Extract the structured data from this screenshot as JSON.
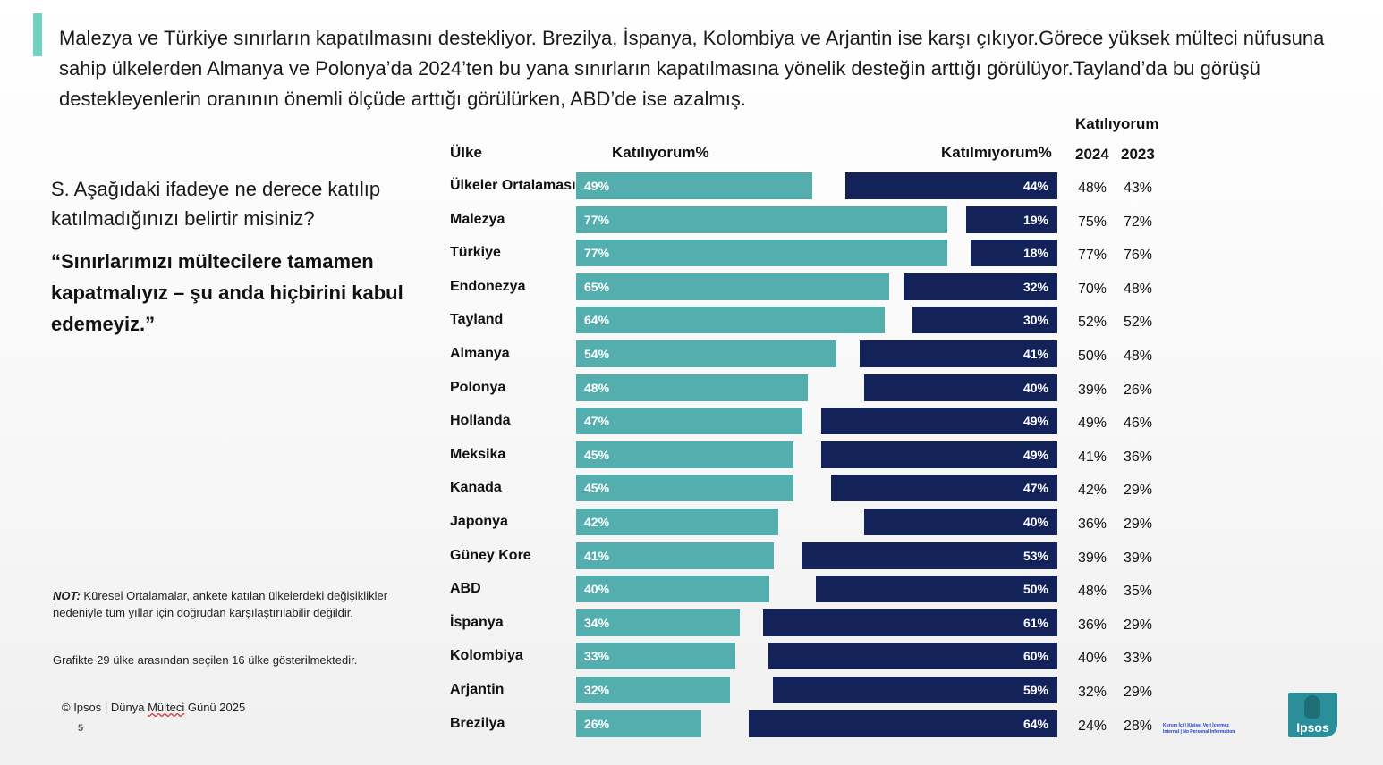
{
  "colors": {
    "accent": "#6fd3c0",
    "agree": "#54aead",
    "disagree": "#13235a"
  },
  "headline": "Malezya ve Türkiye sınırların kapatılmasını destekliyor. Brezilya, İspanya, Kolombiya ve Arjantin ise karşı çıkıyor.Görece yüksek mülteci nüfusuna sahip ülkelerden Almanya ve Polonya’da 2024’ten bu yana sınırların kapatılmasına yönelik desteğin arttığı görülüyor.Tayland’da bu görüşü destekleyenlerin oranının önemli ölçüde arttığı görülürken, ABD’de ise azalmış.",
  "question": "S. Aşağıdaki ifadeye ne derece katılıp katılmadığınızı belirtir misiniz?",
  "statement": "“Sınırlarımızı mültecilere tamamen kapatmalıyız – şu anda hiçbirini kabul edemeyiz.”",
  "note": {
    "label": "NOT:",
    "text": " Küresel Ortalamalar, ankete katılan ülkelerdeki değişiklikler nedeniyle tüm yıllar için doğrudan karşılaştırılabilir değildir.",
    "text2": "Grafikte 29 ülke arasından seçilen 16 ülke gösterilmektedir."
  },
  "footer": {
    "copyright_prefix": "© Ipsos | Dünya ",
    "copyright_underlined": "Mülteci",
    "copyright_suffix": " Günü 2025",
    "page_number": "5",
    "logo_text": "Ipsos",
    "classification_line1": "Kurum İçi | Kişisel Veri İçermez",
    "classification_line2": "Internal | No Personal Information"
  },
  "chart_data": {
    "type": "bar",
    "headers": {
      "country": "Ülke",
      "agree": "Katılıyorum%",
      "disagree": "Katılmıyorum%",
      "trend_title": "Katılıyorum",
      "year1": "2024",
      "year2": "2023"
    },
    "categories": [
      "Ülkeler Ortalaması",
      "Malezya",
      "Türkiye",
      "Endonezya",
      "Tayland",
      "Almanya",
      "Polonya",
      "Hollanda",
      "Meksika",
      "Kanada",
      "Japonya",
      "Güney Kore",
      "ABD",
      "İspanya",
      "Kolombiya",
      "Arjantin",
      "Brezilya"
    ],
    "series": [
      {
        "name": "Katılıyorum%",
        "values": [
          49,
          77,
          77,
          65,
          64,
          54,
          48,
          47,
          45,
          45,
          42,
          41,
          40,
          34,
          33,
          32,
          26
        ]
      },
      {
        "name": "Katılmıyorum%",
        "values": [
          44,
          19,
          18,
          32,
          30,
          41,
          40,
          49,
          49,
          47,
          40,
          53,
          50,
          61,
          60,
          59,
          64
        ]
      }
    ],
    "trend": {
      "2024": [
        "48%",
        "75%",
        "77%",
        "70%",
        "52%",
        "50%",
        "39%",
        "49%",
        "41%",
        "42%",
        "36%",
        "39%",
        "48%",
        "36%",
        "40%",
        "32%",
        "24%"
      ],
      "2023": [
        "43%",
        "72%",
        "76%",
        "48%",
        "52%",
        "48%",
        "26%",
        "46%",
        "36%",
        "29%",
        "29%",
        "39%",
        "35%",
        "29%",
        "33%",
        "29%",
        "28%"
      ]
    },
    "xlim": [
      0,
      100
    ]
  }
}
